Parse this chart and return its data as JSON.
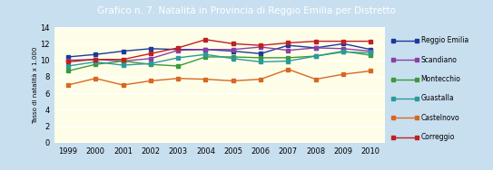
{
  "title": "Grafico n. 7. Natalità in Provincia di Reggio Emilia per Distretto",
  "ylabel": "Tasso di natalità x 1.000",
  "years": [
    1999,
    2000,
    2001,
    2002,
    2003,
    2004,
    2005,
    2006,
    2007,
    2008,
    2009,
    2010
  ],
  "series": {
    "Reggio Emilia": [
      10.4,
      10.7,
      11.1,
      11.4,
      11.3,
      11.3,
      11.1,
      10.8,
      11.8,
      11.5,
      12.0,
      11.3
    ],
    "Scandiano": [
      10.0,
      10.1,
      9.9,
      10.2,
      11.2,
      11.3,
      11.3,
      11.6,
      11.2,
      11.5,
      11.4,
      11.1
    ],
    "Montecchio": [
      8.7,
      9.5,
      9.9,
      9.5,
      9.3,
      10.4,
      10.4,
      10.3,
      10.3,
      10.5,
      11.1,
      10.6
    ],
    "Guastalla": [
      9.3,
      9.8,
      9.4,
      9.6,
      10.3,
      10.7,
      10.2,
      9.8,
      9.9,
      10.5,
      11.0,
      10.9
    ],
    "Castelnovo": [
      7.0,
      7.8,
      7.0,
      7.5,
      7.8,
      7.7,
      7.5,
      7.7,
      8.9,
      7.7,
      8.3,
      8.7
    ],
    "Correggio": [
      9.8,
      10.1,
      10.1,
      10.8,
      11.5,
      12.5,
      12.0,
      11.8,
      12.1,
      12.3,
      12.3,
      12.3
    ]
  },
  "colors": {
    "Reggio Emilia": "#1a3a9c",
    "Scandiano": "#8b3fa8",
    "Montecchio": "#3a9a3a",
    "Guastalla": "#2a9a9a",
    "Castelnovo": "#d86820",
    "Correggio": "#c02020"
  },
  "ylim": [
    0,
    14
  ],
  "yticks": [
    0,
    2,
    4,
    6,
    8,
    10,
    12,
    14
  ],
  "plot_bg": "#fefee8",
  "outer_bg": "#c8dff0",
  "title_bg": "#1a4a9c",
  "title_color": "#ffffff",
  "legend_bg": "#c8dff0"
}
